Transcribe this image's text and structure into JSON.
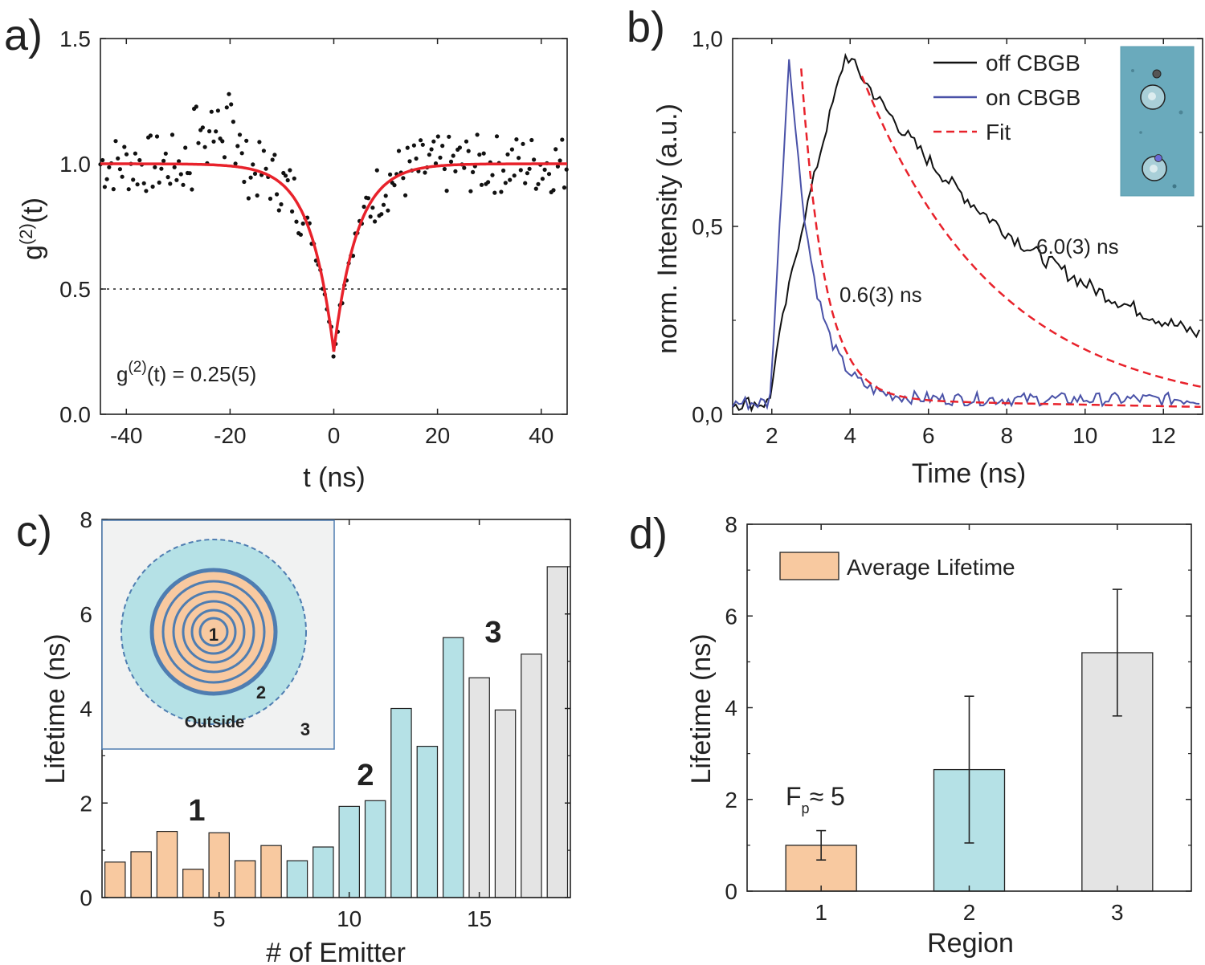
{
  "panels": {
    "a": {
      "letter": "a)",
      "xlabel": "t (ns)",
      "ylabel_base": "g",
      "ylabel_sup": "(2)",
      "ylabel_tail": "(t)",
      "annotation_base": "g",
      "annotation_sup": "(2)",
      "annotation_tail": "(t) = 0.25(5)"
    },
    "b": {
      "letter": "b)",
      "xlabel": "Time (ns)",
      "ylabel": "norm. Intensity (a.u.)",
      "label_fast": "0.6(3) ns",
      "label_slow": "6.0(3) ns"
    },
    "c": {
      "letter": "c)",
      "xlabel": "# of Emitter",
      "ylabel": "Lifetime (ns)",
      "region_label_1": "1",
      "region_label_2": "2",
      "region_label_3": "3",
      "inset": {
        "center_label": "1",
        "ring_label": "2",
        "outside_word": "Outside",
        "outside_label": "3"
      }
    },
    "d": {
      "letter": "d)",
      "xlabel": "Region",
      "ylabel": "Lifetime (ns)",
      "fp_base": "F",
      "fp_sub": "p",
      "fp_tail": "≈ 5"
    }
  },
  "colors": {
    "orange": "#f8c9a0",
    "cyan": "#b5e1e6",
    "grey": "#e4e4e4",
    "red": "#e8222b",
    "blue": "#4a52a8",
    "black": "#111111",
    "inset_bg": "#f1f2f2",
    "ring": "#4f7db1"
  },
  "chart_data": [
    {
      "id": "a",
      "type": "scatter",
      "xlabel": "t (ns)",
      "ylabel": "g(2)(t)",
      "xlim": [
        -45,
        45
      ],
      "ylim": [
        0.0,
        1.5
      ],
      "xticks": [
        -40,
        -20,
        0,
        20,
        40
      ],
      "yticks": [
        0.0,
        0.5,
        1.0,
        1.5
      ],
      "ytick_labels": [
        "0.0",
        "0.5",
        "1.0",
        "1.5"
      ],
      "reference_line": 0.5,
      "fit": {
        "name": "fit",
        "g0": 0.25,
        "tau_ns": 4.5,
        "baseline": 1.0
      },
      "annotation": "g(2)(t) = 0.25(5)"
    },
    {
      "id": "b",
      "type": "line",
      "xlabel": "Time (ns)",
      "ylabel": "norm. Intensity (a.u.)",
      "xlim": [
        1,
        13
      ],
      "ylim": [
        0.0,
        1.0
      ],
      "xticks": [
        2,
        4,
        6,
        8,
        10,
        12
      ],
      "yticks": [
        0.0,
        0.5,
        1.0
      ],
      "ytick_labels": [
        "0,0",
        "0,5",
        "1,0"
      ],
      "series": [
        {
          "name": "off CBGB",
          "color": "#111111",
          "peak_time": 3.9,
          "peak": 0.96,
          "tau_ns": 6.0,
          "baseline": 0.0
        },
        {
          "name": "on CBGB",
          "color": "#4a52a8",
          "peak_time": 2.45,
          "peak": 0.97,
          "tau_ns": 0.6,
          "baseline": 0.04
        },
        {
          "name": "Fit",
          "color": "#e8222b",
          "style": "dashed"
        }
      ],
      "annotations": [
        "0.6(3) ns",
        "6.0(3) ns"
      ]
    },
    {
      "id": "c",
      "type": "bar",
      "xlabel": "# of Emitter",
      "ylabel": "Lifetime (ns)",
      "xlim": [
        0.5,
        18.5
      ],
      "ylim": [
        0,
        8
      ],
      "xticks": [
        5,
        10,
        15
      ],
      "yticks": [
        0,
        2,
        4,
        6,
        8
      ],
      "categories": [
        1,
        2,
        3,
        4,
        5,
        6,
        7,
        8,
        9,
        10,
        11,
        12,
        13,
        14,
        15,
        16,
        17,
        18
      ],
      "values": [
        0.75,
        0.97,
        1.4,
        0.6,
        1.37,
        0.78,
        1.1,
        0.78,
        1.07,
        1.93,
        2.05,
        4.0,
        3.2,
        5.5,
        4.65,
        3.97,
        5.15,
        7.0
      ],
      "regions": [
        1,
        1,
        1,
        1,
        1,
        1,
        1,
        2,
        2,
        2,
        2,
        2,
        2,
        2,
        3,
        3,
        3,
        3
      ]
    },
    {
      "id": "d",
      "type": "bar",
      "xlabel": "Region",
      "ylabel": "Lifetime (ns)",
      "xlim": [
        0.5,
        3.5
      ],
      "ylim": [
        0,
        8
      ],
      "xticks": [
        1,
        2,
        3
      ],
      "yticks": [
        0,
        2,
        4,
        6,
        8
      ],
      "categories": [
        "1",
        "2",
        "3"
      ],
      "values": [
        1.0,
        2.65,
        5.2
      ],
      "errors": [
        0.32,
        1.6,
        1.38
      ],
      "legend": "Average Lifetime",
      "annotation": "Fp≈ 5"
    }
  ]
}
